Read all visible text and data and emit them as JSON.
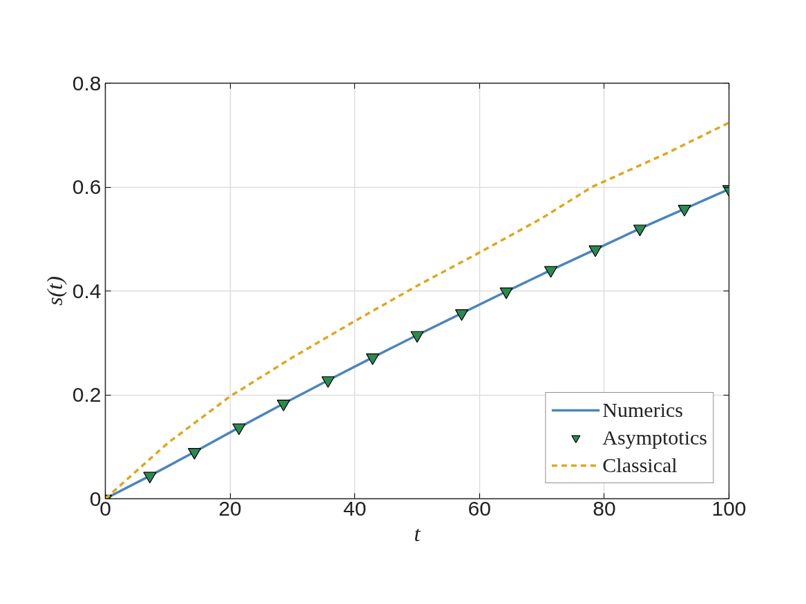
{
  "chart_data": {
    "type": "line",
    "xlabel": "t",
    "ylabel": "s(t)",
    "xlim": [
      0,
      100
    ],
    "ylim": [
      0,
      0.8
    ],
    "xticks": [
      0,
      20,
      40,
      60,
      80,
      100
    ],
    "yticks": [
      0,
      0.2,
      0.4,
      0.6,
      0.8
    ],
    "grid": true,
    "legend": "bottom right",
    "series": [
      {
        "name": "Numerics",
        "color": "#4a85bf",
        "line_style": "solid",
        "x": [
          0,
          7.14,
          14.29,
          21.43,
          28.57,
          35.71,
          42.86,
          50,
          57.14,
          64.29,
          71.43,
          78.57,
          85.71,
          92.86,
          100
        ],
        "values": [
          0,
          0.044,
          0.09,
          0.137,
          0.183,
          0.228,
          0.272,
          0.315,
          0.357,
          0.399,
          0.44,
          0.48,
          0.52,
          0.558,
          0.596
        ]
      },
      {
        "name": "Asymptotics",
        "type": "scatter",
        "color": "#2b8a50",
        "marker": "triangle",
        "x": [
          0,
          7.14,
          14.29,
          21.43,
          28.57,
          35.71,
          42.86,
          50,
          57.14,
          64.29,
          71.43,
          78.57,
          85.71,
          92.86,
          100
        ],
        "values": [
          0,
          0.044,
          0.09,
          0.137,
          0.183,
          0.228,
          0.272,
          0.315,
          0.357,
          0.399,
          0.44,
          0.48,
          0.52,
          0.558,
          0.596
        ]
      },
      {
        "name": "Classical",
        "type": "line",
        "color": "#e0a61c",
        "line_style": "dashed",
        "x": [
          0,
          10,
          20,
          30,
          40,
          50,
          60,
          70,
          78,
          90,
          100
        ],
        "values": [
          0,
          0.107,
          0.197,
          0.272,
          0.342,
          0.41,
          0.474,
          0.54,
          0.6,
          0.665,
          0.724
        ]
      }
    ]
  }
}
